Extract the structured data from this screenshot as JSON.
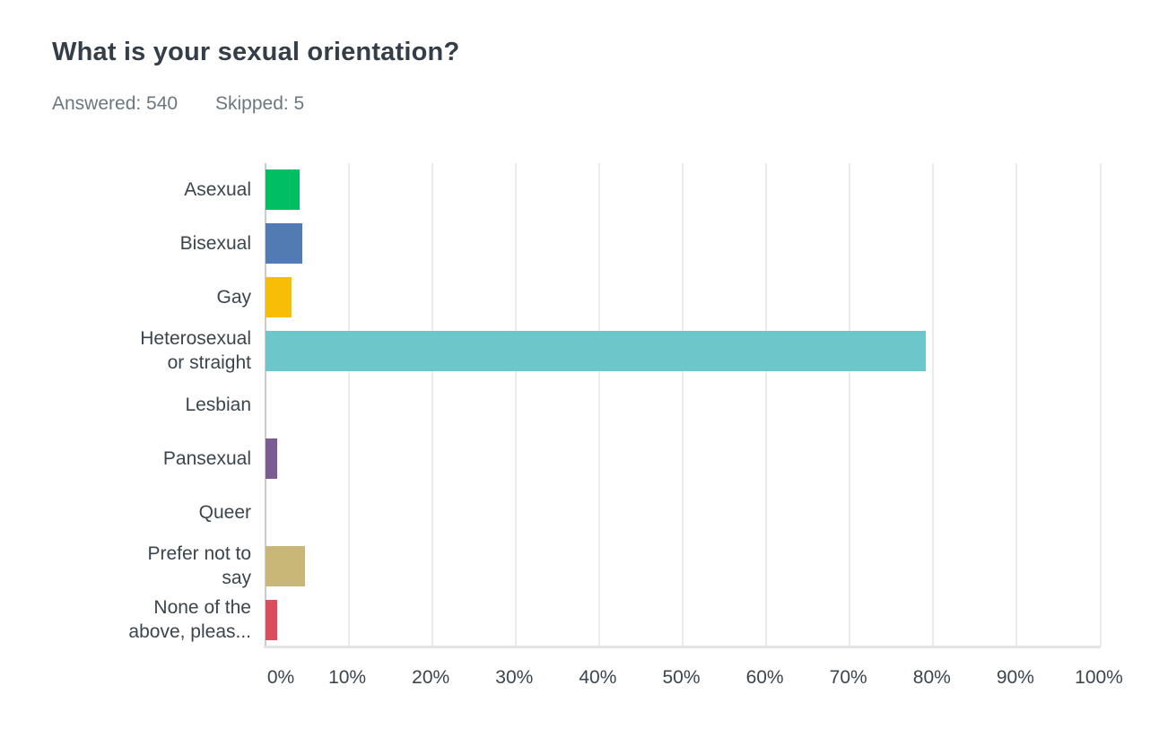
{
  "header": {
    "title": "What is your sexual orientation?",
    "answered": "Answered: 540",
    "skipped": "Skipped: 5"
  },
  "chart_data": {
    "type": "bar",
    "orientation": "horizontal",
    "title": "What is your sexual orientation?",
    "answered_count": 540,
    "skipped_count": 5,
    "xlabel": "",
    "ylabel": "",
    "xlim": [
      0,
      100
    ],
    "grid": true,
    "x_ticks": [
      "0%",
      "10%",
      "20%",
      "30%",
      "40%",
      "50%",
      "60%",
      "70%",
      "80%",
      "90%",
      "100%"
    ],
    "value_unit": "percent",
    "categories": [
      {
        "label": "Asexual",
        "lines": [
          "Asexual"
        ],
        "value": 4.1,
        "color": "#00BF63"
      },
      {
        "label": "Bisexual",
        "lines": [
          "Bisexual"
        ],
        "value": 4.4,
        "color": "#527AB3"
      },
      {
        "label": "Gay",
        "lines": [
          "Gay"
        ],
        "value": 3.1,
        "color": "#F7BD07"
      },
      {
        "label": "Heterosexual or straight",
        "lines": [
          "Heterosexual",
          "or straight"
        ],
        "value": 79.1,
        "color": "#6CC6CA"
      },
      {
        "label": "Lesbian",
        "lines": [
          "Lesbian"
        ],
        "value": 0,
        "color": null
      },
      {
        "label": "Pansexual",
        "lines": [
          "Pansexual"
        ],
        "value": 1.4,
        "color": "#7A5C93"
      },
      {
        "label": "Queer",
        "lines": [
          "Queer"
        ],
        "value": 0,
        "color": null
      },
      {
        "label": "Prefer not to say",
        "lines": [
          "Prefer not to",
          "say"
        ],
        "value": 4.7,
        "color": "#C9B777"
      },
      {
        "label": "None of the above, pleas...",
        "lines": [
          "None of the",
          "above, pleas..."
        ],
        "value": 1.4,
        "color": "#D94D5C"
      }
    ]
  }
}
